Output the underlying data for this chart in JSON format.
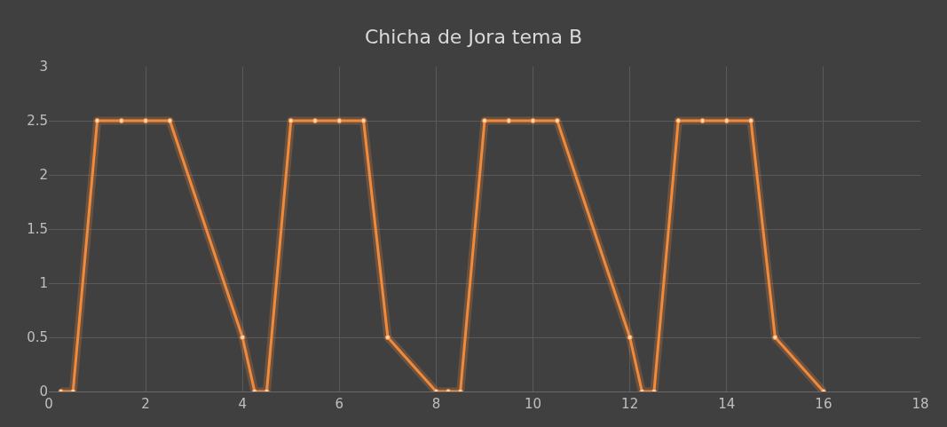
{
  "chart_data": {
    "type": "line",
    "title": "Chicha de Jora tema B",
    "x": [
      0.25,
      0.5,
      1,
      1.5,
      2,
      2.5,
      4,
      4.25,
      4.5,
      5,
      5.5,
      6,
      6.5,
      7,
      8,
      8.25,
      8.5,
      9,
      9.5,
      10,
      10.5,
      12,
      12.25,
      12.5,
      13,
      13.5,
      14,
      14.5,
      15,
      16
    ],
    "series": [
      {
        "color": "#f08a3c",
        "values": [
          0,
          0,
          2.5,
          2.5,
          2.5,
          2.5,
          0.5,
          0,
          0,
          2.5,
          2.5,
          2.5,
          2.5,
          0.5,
          0,
          0,
          0,
          2.5,
          2.5,
          2.5,
          2.5,
          0.5,
          0,
          0,
          2.5,
          2.5,
          2.5,
          2.5,
          0.5,
          0
        ]
      }
    ],
    "xlim": [
      0,
      18
    ],
    "xticks": [
      0,
      2,
      4,
      6,
      8,
      10,
      12,
      14,
      16,
      18
    ],
    "ylim": [
      0,
      3
    ],
    "yticks": [
      0,
      0.5,
      1,
      1.5,
      2,
      2.5,
      3
    ],
    "grid": true,
    "marker": "circle",
    "line_style": "solid"
  }
}
